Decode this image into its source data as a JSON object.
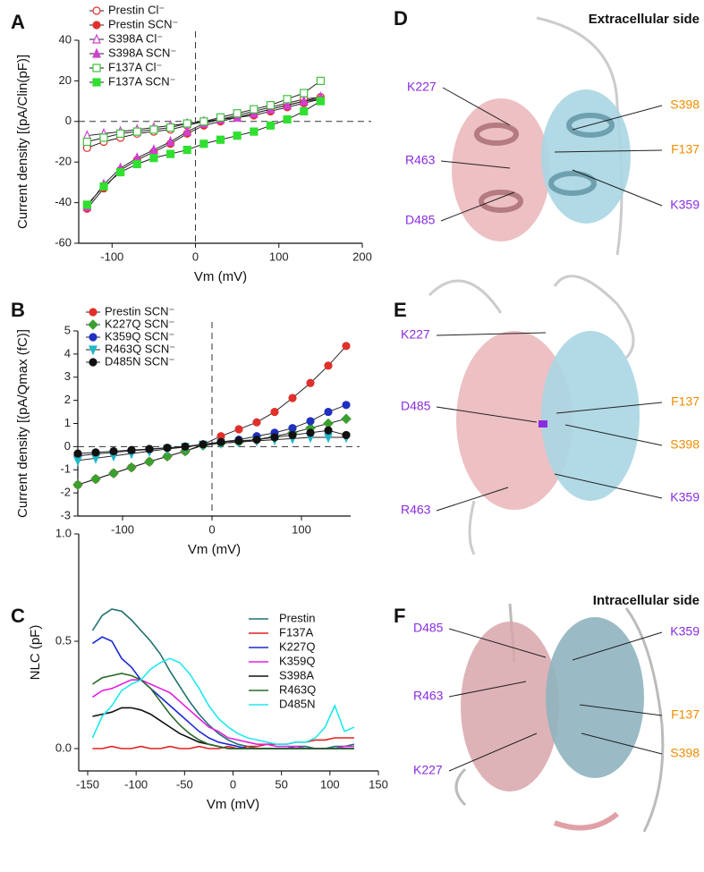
{
  "chart_data": [
    {
      "type": "line",
      "panel": "A",
      "xlabel": "Vm (mV)",
      "ylabel": "Current density [(pA/Clin(pF)]",
      "xlim": [
        -140,
        200
      ],
      "xticks": [
        -100,
        0,
        100,
        200
      ],
      "ylim": [
        -60,
        40
      ],
      "yticks": [
        -60,
        -40,
        -20,
        0,
        20,
        40
      ],
      "zero_lines": true,
      "x": [
        -130,
        -110,
        -90,
        -70,
        -50,
        -30,
        -10,
        10,
        30,
        50,
        70,
        90,
        110,
        130,
        150
      ],
      "series": [
        {
          "name": "Prestin Cl⁻",
          "color": "#e0302a",
          "marker": "circle",
          "filled": false,
          "values": [
            -13,
            -10,
            -8,
            -6,
            -5,
            -4,
            -2,
            0,
            1,
            3,
            5,
            7,
            9,
            11,
            12
          ]
        },
        {
          "name": "Prestin SCN⁻",
          "color": "#e0302a",
          "marker": "circle",
          "filled": true,
          "values": [
            -43,
            -33,
            -24,
            -19,
            -15,
            -11,
            -6,
            -2,
            0,
            2,
            3,
            5,
            7,
            9,
            11
          ]
        },
        {
          "name": "S398A Cl⁻",
          "color": "#d040d0",
          "marker": "triangle",
          "filled": false,
          "values": [
            -7,
            -6,
            -5,
            -4,
            -3,
            -2,
            -1,
            0,
            1,
            2,
            4,
            6,
            8,
            10,
            12
          ]
        },
        {
          "name": "S398A SCN⁻",
          "color": "#d040d0",
          "marker": "triangle",
          "filled": true,
          "values": [
            -42,
            -31,
            -23,
            -18,
            -14,
            -10,
            -5,
            -1,
            1,
            2,
            4,
            6,
            8,
            10,
            11
          ]
        },
        {
          "name": "F137A Cl⁻",
          "color": "#40c040",
          "marker": "square",
          "filled": false,
          "values": [
            -10,
            -8,
            -6,
            -5,
            -4,
            -3,
            -1,
            0,
            2,
            4,
            6,
            8,
            11,
            14,
            20
          ]
        },
        {
          "name": "F137A SCN⁻",
          "color": "#30e030",
          "marker": "square",
          "filled": true,
          "values": [
            -41,
            -32,
            -25,
            -21,
            -18,
            -16,
            -14,
            -11,
            -9,
            -7,
            -5,
            -2,
            1,
            5,
            10
          ]
        }
      ]
    },
    {
      "type": "line",
      "panel": "B",
      "xlabel": "Vm (mV)",
      "ylabel": "Current density [(pA/Qmax (fC)]",
      "xlim": [
        -150,
        155
      ],
      "xticks": [
        -100,
        0,
        100
      ],
      "ylim": [
        -3,
        5
      ],
      "yticks": [
        -3,
        -2,
        -1,
        0,
        1,
        2,
        3,
        4,
        5
      ],
      "zero_lines": true,
      "x": [
        -150,
        -130,
        -110,
        -90,
        -70,
        -50,
        -30,
        -10,
        10,
        30,
        50,
        70,
        90,
        110,
        130,
        150
      ],
      "series": [
        {
          "name": "Prestin SCN⁻",
          "color": "#e0302a",
          "marker": "circle",
          "filled": true,
          "values": [
            -1.65,
            -1.4,
            -1.15,
            -0.9,
            -0.65,
            -0.42,
            -0.2,
            0.1,
            0.45,
            0.75,
            1.05,
            1.5,
            2.1,
            2.75,
            3.5,
            4.35
          ]
        },
        {
          "name": "K227Q SCN⁻",
          "color": "#3aa030",
          "marker": "diamond",
          "filled": true,
          "values": [
            -1.65,
            -1.4,
            -1.15,
            -0.9,
            -0.65,
            -0.42,
            -0.2,
            0.05,
            0.15,
            0.2,
            0.3,
            0.45,
            0.6,
            0.8,
            1.0,
            1.2
          ]
        },
        {
          "name": "K359Q SCN⁻",
          "color": "#2030c0",
          "marker": "circle",
          "filled": true,
          "values": [
            -0.4,
            -0.32,
            -0.25,
            -0.18,
            -0.12,
            -0.06,
            0,
            0.1,
            0.2,
            0.3,
            0.45,
            0.6,
            0.8,
            1.1,
            1.5,
            1.8
          ]
        },
        {
          "name": "R463Q SCN⁻",
          "color": "#20b8c8",
          "marker": "triangle-down",
          "filled": true,
          "values": [
            -0.6,
            -0.5,
            -0.4,
            -0.3,
            -0.2,
            -0.1,
            -0.02,
            0.08,
            0.15,
            0.2,
            0.25,
            0.3,
            0.35,
            0.4,
            0.4,
            0.4
          ]
        },
        {
          "name": "D485N SCN⁻",
          "color": "#111111",
          "marker": "circle",
          "filled": true,
          "values": [
            -0.3,
            -0.25,
            -0.2,
            -0.15,
            -0.1,
            -0.05,
            0,
            0.1,
            0.2,
            0.25,
            0.3,
            0.4,
            0.5,
            0.6,
            0.7,
            0.5
          ]
        }
      ]
    },
    {
      "type": "line",
      "panel": "C",
      "xlabel": "Vm (mV)",
      "ylabel": "NLC (pF)",
      "xlim": [
        -150,
        150
      ],
      "xticks": [
        -150,
        -100,
        -50,
        0,
        50,
        100,
        150
      ],
      "ylim": [
        0,
        1
      ],
      "yticks": [
        {
          "value": 0,
          "label": "0.0"
        },
        {
          "value": 0.5,
          "label": "0.5"
        },
        {
          "value": 1,
          "label": "1.0"
        }
      ],
      "x": [
        -145,
        -135,
        -125,
        -115,
        -105,
        -95,
        -85,
        -75,
        -65,
        -55,
        -45,
        -35,
        -25,
        -15,
        -5,
        5,
        15,
        25,
        35,
        45,
        55,
        65,
        75,
        85,
        95,
        105,
        115,
        125
      ],
      "series": [
        {
          "name": "Prestin",
          "color": "#1f7070",
          "values": [
            0.55,
            0.62,
            0.65,
            0.64,
            0.6,
            0.55,
            0.5,
            0.44,
            0.36,
            0.29,
            0.22,
            0.16,
            0.11,
            0.07,
            0.04,
            0.02,
            0.01,
            0,
            0,
            0,
            0,
            0.01,
            0.01,
            0,
            0,
            0.01,
            0.01,
            0.02
          ]
        },
        {
          "name": "F137A",
          "color": "#e02020",
          "values": [
            0,
            0,
            0.01,
            0,
            0,
            0.01,
            0,
            0,
            0.01,
            0,
            0,
            0.01,
            0,
            0,
            0.01,
            0,
            0.01,
            0.01,
            0.02,
            0.02,
            0.02,
            0.03,
            0.03,
            0.04,
            0.04,
            0.05,
            0.05,
            0.05
          ]
        },
        {
          "name": "K227Q",
          "color": "#1a2ad0",
          "values": [
            0.49,
            0.52,
            0.5,
            0.42,
            0.38,
            0.32,
            0.28,
            0.24,
            0.2,
            0.16,
            0.12,
            0.08,
            0.05,
            0.03,
            0.02,
            0.01,
            0,
            0,
            0,
            0,
            0,
            0,
            0,
            0,
            0,
            0,
            0,
            0
          ]
        },
        {
          "name": "K359Q",
          "color": "#e020e0",
          "values": [
            0.24,
            0.27,
            0.28,
            0.3,
            0.32,
            0.32,
            0.3,
            0.28,
            0.26,
            0.22,
            0.18,
            0.14,
            0.1,
            0.08,
            0.05,
            0.04,
            0.03,
            0.02,
            0.02,
            0.01,
            0.01,
            0.01,
            0,
            0,
            0,
            0,
            0.01,
            0.01
          ]
        },
        {
          "name": "S398A",
          "color": "#111111",
          "values": [
            0.15,
            0.16,
            0.17,
            0.19,
            0.19,
            0.18,
            0.16,
            0.13,
            0.1,
            0.07,
            0.05,
            0.03,
            0.02,
            0.01,
            0,
            0,
            0,
            0,
            0,
            0,
            0,
            0,
            0,
            0,
            0,
            0,
            0,
            0
          ]
        },
        {
          "name": "R463Q",
          "color": "#2a6a2a",
          "values": [
            0.3,
            0.33,
            0.34,
            0.35,
            0.34,
            0.32,
            0.28,
            0.22,
            0.16,
            0.11,
            0.07,
            0.04,
            0.02,
            0.01,
            0,
            0,
            0,
            0,
            0,
            0,
            0,
            0,
            0,
            0,
            0,
            0,
            0,
            0
          ]
        },
        {
          "name": "D485N",
          "color": "#20e8f0",
          "values": [
            0.05,
            0.15,
            0.2,
            0.27,
            0.3,
            0.32,
            0.37,
            0.4,
            0.42,
            0.4,
            0.35,
            0.28,
            0.2,
            0.14,
            0.1,
            0.07,
            0.05,
            0.04,
            0.03,
            0.02,
            0.02,
            0.03,
            0.03,
            0.05,
            0.1,
            0.2,
            0.08,
            0.1
          ]
        }
      ]
    }
  ],
  "panels": [
    {
      "letter": "D",
      "title": "Extracellular side",
      "labels": [
        {
          "text": "K227",
          "color": "#8a2be2"
        },
        {
          "text": "R463",
          "color": "#8a2be2"
        },
        {
          "text": "D485",
          "color": "#8a2be2"
        },
        {
          "text": "S398",
          "color": "#f08c00"
        },
        {
          "text": "F137",
          "color": "#f08c00"
        },
        {
          "text": "K359",
          "color": "#8a2be2"
        }
      ]
    },
    {
      "letter": "E",
      "labels": [
        {
          "text": "K227",
          "color": "#8a2be2"
        },
        {
          "text": "D485",
          "color": "#8a2be2"
        },
        {
          "text": "R463",
          "color": "#8a2be2"
        },
        {
          "text": "F137",
          "color": "#f08c00"
        },
        {
          "text": "S398",
          "color": "#f08c00"
        },
        {
          "text": "K359",
          "color": "#8a2be2"
        }
      ]
    },
    {
      "letter": "F",
      "title": "Intracellular side",
      "labels": [
        {
          "text": "D485",
          "color": "#8a2be2"
        },
        {
          "text": "R463",
          "color": "#8a2be2"
        },
        {
          "text": "K227",
          "color": "#8a2be2"
        },
        {
          "text": "K359",
          "color": "#8a2be2"
        },
        {
          "text": "F137",
          "color": "#f08c00"
        },
        {
          "text": "S398",
          "color": "#f08c00"
        }
      ]
    }
  ]
}
